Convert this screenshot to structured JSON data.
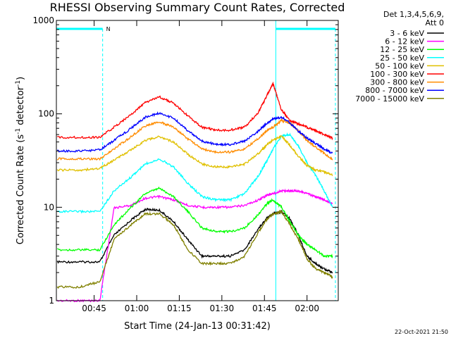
{
  "chart_data": {
    "type": "line",
    "title": "RHESSI Observing Summary Count Rates, Corrected",
    "xlabel": "Start Time (24-Jan-13 00:31:42)",
    "ylabel": "Corrected Count Rate (s⁻¹ detector⁻¹)",
    "yscale": "log",
    "ylim": [
      1,
      1000
    ],
    "xlim": [
      "00:31:42",
      "02:11"
    ],
    "x_ticks": [
      "00:45",
      "01:00",
      "01:15",
      "01:30",
      "01:45",
      "02:00"
    ],
    "y_ticks": [
      "1",
      "10",
      "100",
      "1000"
    ],
    "legend_header": [
      "Det 1,3,4,5,6,9,",
      "Att 0"
    ],
    "legend_position": "top-right",
    "night_marker_label": "N",
    "timestamp": "22-Oct-2021 21:50",
    "night_bars": [
      [
        "00:31:42",
        "00:48"
      ],
      [
        "01:49",
        "02:10"
      ]
    ],
    "x": [
      "00:32",
      "00:40",
      "00:47",
      "00:52",
      "00:58",
      "01:03",
      "01:08",
      "01:13",
      "01:18",
      "01:23",
      "01:28",
      "01:33",
      "01:38",
      "01:43",
      "01:46",
      "01:48",
      "01:51",
      "01:54",
      "01:57",
      "02:00",
      "02:03",
      "02:06",
      "02:09"
    ],
    "series": [
      {
        "name": "3 - 6 keV",
        "color": "#000000",
        "values": [
          2.6,
          2.6,
          2.6,
          5,
          7.3,
          9.5,
          9.3,
          7,
          4.5,
          3,
          3,
          3,
          3.5,
          6,
          7.8,
          8.5,
          9,
          7.5,
          5,
          3,
          2.5,
          2.2,
          2
        ]
      },
      {
        "name": "6 - 12 keV",
        "color": "#ff00ff",
        "values": [
          1,
          1,
          1,
          9.8,
          10.5,
          12.5,
          13,
          12,
          10.5,
          10,
          10,
          10,
          10.5,
          12,
          13.5,
          14,
          15,
          15,
          15,
          14,
          13,
          12,
          11
        ]
      },
      {
        "name": "12 - 25 keV",
        "color": "#00ff00",
        "values": [
          3.5,
          3.5,
          3.5,
          6.5,
          10,
          14,
          16,
          13,
          9,
          6,
          5.5,
          5.5,
          6,
          8.5,
          11,
          12,
          10,
          7,
          5,
          4,
          3.5,
          3,
          3
        ]
      },
      {
        "name": "25 - 50 keV",
        "color": "#00ffff",
        "values": [
          9,
          9,
          9,
          15,
          21,
          29,
          33,
          27,
          18,
          13,
          12,
          12,
          14,
          22,
          32,
          42,
          58,
          60,
          45,
          30,
          22,
          15,
          10
        ]
      },
      {
        "name": "50 - 100 keV",
        "color": "#e0c000",
        "values": [
          25,
          25,
          26,
          32,
          41,
          52,
          57,
          50,
          37,
          29,
          27,
          27,
          29,
          38,
          47,
          52,
          58,
          46,
          35,
          28,
          25,
          24,
          22
        ]
      },
      {
        "name": "100 - 300 keV",
        "color": "#ff0000",
        "values": [
          56,
          56,
          56,
          72,
          98,
          132,
          152,
          130,
          95,
          72,
          67,
          67,
          72,
          105,
          160,
          210,
          110,
          85,
          78,
          72,
          66,
          60,
          55
        ]
      },
      {
        "name": "300 - 800 keV",
        "color": "#ff8c00",
        "values": [
          33,
          33,
          33,
          42,
          57,
          74,
          82,
          72,
          54,
          42,
          39,
          39,
          42,
          55,
          66,
          72,
          85,
          80,
          65,
          52,
          44,
          38,
          32
        ]
      },
      {
        "name": "800 - 7000 keV",
        "color": "#0000ff",
        "values": [
          40,
          40,
          41,
          52,
          70,
          92,
          102,
          90,
          66,
          51,
          47,
          47,
          51,
          66,
          80,
          88,
          92,
          80,
          65,
          55,
          48,
          42,
          38
        ]
      },
      {
        "name": "7000 - 15000 keV",
        "color": "#808000",
        "values": [
          1.4,
          1.4,
          1.6,
          4.5,
          6.5,
          8.5,
          8.5,
          6.5,
          3.5,
          2.5,
          2.5,
          2.5,
          3,
          5.5,
          7.5,
          8.5,
          9,
          6.5,
          4.5,
          2.8,
          2.2,
          2,
          1.8
        ]
      }
    ]
  }
}
